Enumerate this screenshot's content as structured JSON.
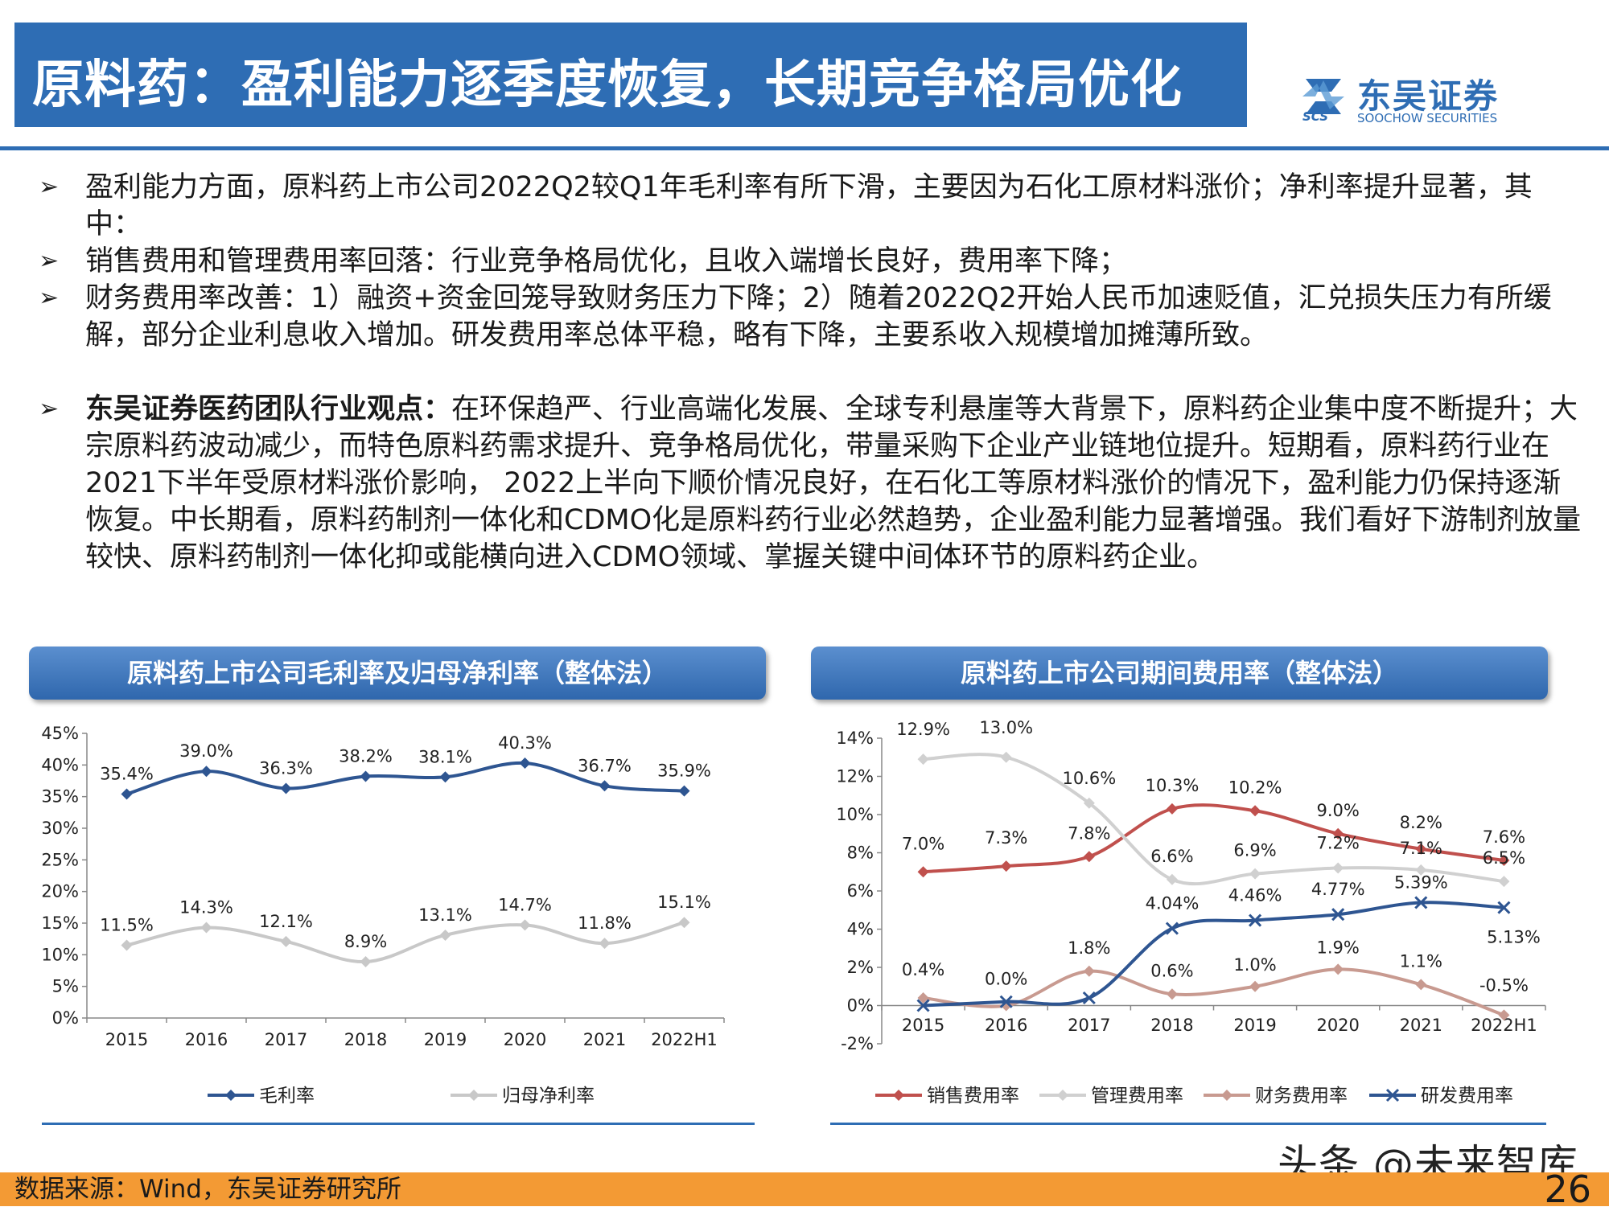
{
  "title": "原料药：盈利能力逐季度恢复，长期竞争格局优化",
  "logo": {
    "name_cn": "东吴证券",
    "name_en": "SOOCHOW SECURITIES",
    "abbr": "SCS"
  },
  "bullets": [
    {
      "arrow": "➢",
      "bold": "",
      "text": "盈利能力方面，原料药上市公司2022Q2较Q1年毛利率有所下滑，主要因为石化工原材料涨价；净利率提升显著，其中："
    },
    {
      "arrow": "➢",
      "bold": "",
      "text": "销售费用和管理费用率回落：行业竞争格局优化，且收入端增长良好，费用率下降；"
    },
    {
      "arrow": "➢",
      "bold": "",
      "text": "财务费用率改善：1）融资+资金回笼导致财务压力下降；2）随着2022Q2开始人民币加速贬值，汇兑损失压力有所缓解，部分企业利息收入增加。研发费用率总体平稳，略有下降，主要系收入规模增加摊薄所致。"
    },
    {
      "arrow": "➢",
      "bold": "东吴证券医药团队行业观点：",
      "text": "在环保趋严、行业高端化发展、全球专利悬崖等大背景下，原料药企业集中度不断提升；大宗原料药波动减少，而特色原料药需求提升、竞争格局优化，带量采购下企业产业链地位提升。短期看，原料药行业在2021下半年受原材料涨价影响， 2022上半向下顺价情况良好，在石化工等原材料涨价的情况下，盈利能力仍保持逐渐恢复。中长期看，原料药制剂一体化和CDMO化是原料药行业必然趋势，企业盈利能力显著增强。我们看好下游制剂放量较快、原料药制剂一体化抑或能横向进入CDMO领域、掌握关键中间体环节的原料药企业。"
    }
  ],
  "chart_left_title": "原料药上市公司毛利率及归母净利率（整体法）",
  "chart_right_title": "原料药上市公司期间费用率（整体法）",
  "chart_data": [
    {
      "type": "line",
      "title": "原料药上市公司毛利率及归母净利率（整体法）",
      "categories": [
        "2015",
        "2016",
        "2017",
        "2018",
        "2019",
        "2020",
        "2021",
        "2022H1"
      ],
      "ylim": [
        0,
        45
      ],
      "yticks": [
        "0%",
        "5%",
        "10%",
        "15%",
        "20%",
        "25%",
        "30%",
        "35%",
        "40%",
        "45%"
      ],
      "legend_position": "bottom",
      "grid": false,
      "series": [
        {
          "name": "毛利率",
          "color": "#2e5591",
          "marker": "diamond",
          "values": [
            35.4,
            39.0,
            36.3,
            38.2,
            38.1,
            40.3,
            36.7,
            35.9
          ],
          "labels": [
            "35.4%",
            "39.0%",
            "36.3%",
            "38.2%",
            "38.1%",
            "40.3%",
            "36.7%",
            "35.9%"
          ]
        },
        {
          "name": "归母净利率",
          "color": "#c8c8c8",
          "marker": "diamond",
          "values": [
            11.5,
            14.3,
            12.1,
            8.9,
            13.1,
            14.7,
            11.8,
            15.1
          ],
          "labels": [
            "11.5%",
            "14.3%",
            "12.1%",
            "8.9%",
            "13.1%",
            "14.7%",
            "11.8%",
            "15.1%"
          ]
        }
      ]
    },
    {
      "type": "line",
      "title": "原料药上市公司期间费用率（整体法）",
      "categories": [
        "2015",
        "2016",
        "2017",
        "2018",
        "2019",
        "2020",
        "2021",
        "2022H1"
      ],
      "ylim": [
        -2,
        14
      ],
      "yticks": [
        "-2%",
        "0%",
        "2%",
        "4%",
        "6%",
        "8%",
        "10%",
        "12%",
        "14%"
      ],
      "legend_position": "bottom",
      "grid": false,
      "series": [
        {
          "name": "销售费用率",
          "color": "#c0504d",
          "marker": "diamond",
          "values": [
            7.0,
            7.3,
            7.8,
            10.3,
            10.2,
            9.0,
            8.2,
            7.6
          ],
          "labels": [
            "7.0%",
            "7.3%",
            "7.8%",
            "10.3%",
            "10.2%",
            "9.0%",
            "8.2%",
            "7.6%"
          ]
        },
        {
          "name": "管理费用率",
          "color": "#d0d0d0",
          "marker": "diamond",
          "values": [
            12.9,
            13.0,
            10.6,
            6.6,
            6.9,
            7.2,
            7.1,
            6.5
          ],
          "labels": [
            "12.9%",
            "13.0%",
            "10.6%",
            "6.6%",
            "6.9%",
            "7.2%",
            "7.1%",
            "6.5%"
          ]
        },
        {
          "name": "财务费用率",
          "color": "#c89a90",
          "marker": "diamond",
          "values": [
            0.4,
            0.0,
            1.8,
            0.6,
            1.0,
            1.9,
            1.1,
            -0.5
          ],
          "labels": [
            "0.4%",
            "0.0%",
            "1.8%",
            "0.6%",
            "1.0%",
            "1.9%",
            "1.1%",
            "-0.5%"
          ]
        },
        {
          "name": "研发费用率",
          "color": "#2e5591",
          "marker": "x",
          "values": [
            0.0,
            0.2,
            0.4,
            4.04,
            4.46,
            4.77,
            5.39,
            5.13
          ],
          "labels": [
            "",
            "",
            "",
            "4.04%",
            "4.46%",
            "4.77%",
            "5.39%",
            "5.13%"
          ]
        }
      ]
    }
  ],
  "footer": {
    "source": "数据来源：Wind，东吴证券研究所",
    "page": "26",
    "watermark": "头条 @未来智库"
  }
}
